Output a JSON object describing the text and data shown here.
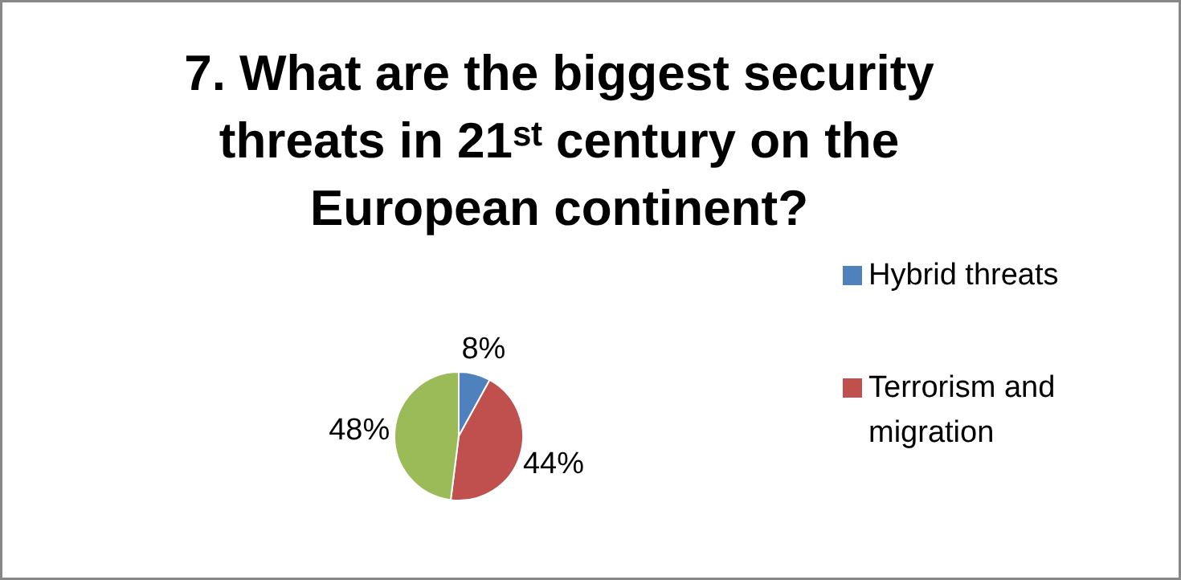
{
  "chart_data": {
    "type": "pie",
    "title": "7. What are the biggest security threats in 21ˢᵗ century on the European continent?",
    "categories": [
      "Hybrid threats",
      "Terrorism and migration",
      null
    ],
    "values": [
      8,
      44,
      48
    ],
    "colors": [
      "#4f81bd",
      "#c0504d",
      "#9bbb59"
    ],
    "value_labels": [
      "8%",
      "44%",
      "48%"
    ],
    "legend": "right"
  }
}
